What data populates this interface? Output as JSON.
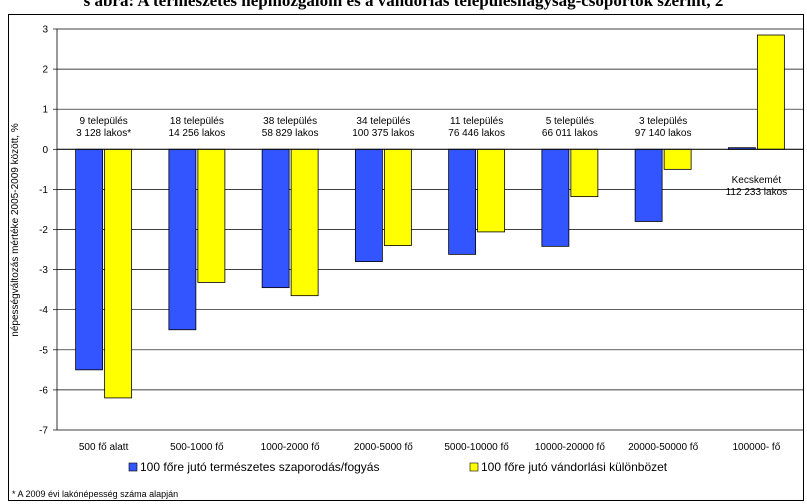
{
  "title": "s ábra: A természetes népmozgalom és a vándorlás településnagyság-csoportok szerint, 2",
  "footnote": "* A 2009 évi lakónépesség száma alapján",
  "chart_data": {
    "type": "bar",
    "ylabel": "népességváltozás mértéke 2005-2009 között, %",
    "xlabel": "",
    "ylim": [
      -7,
      3
    ],
    "yticks": [
      3,
      2,
      1,
      0,
      -1,
      -2,
      -3,
      -4,
      -5,
      -6,
      -7
    ],
    "grid": true,
    "legend_position": "bottom",
    "categories": [
      "500 fő alatt",
      "500-1000 fő",
      "1000-2000 fő",
      "2000-5000 fő",
      "5000-10000 fő",
      "10000-20000 fő",
      "20000-50000 fő",
      "100000- fő"
    ],
    "series": [
      {
        "name": "100 főre jutó természetes szaporodás/fogyás",
        "color": "#3355ff",
        "values": [
          -5.5,
          -4.5,
          -3.45,
          -2.8,
          -2.62,
          -2.42,
          -1.8,
          0.04
        ]
      },
      {
        "name": "100 főre jutó vándorlási különbözet",
        "color": "#ffff00",
        "values": [
          -6.2,
          -3.32,
          -3.65,
          -2.4,
          -2.06,
          -1.18,
          -0.5,
          2.85
        ]
      }
    ],
    "annotations": [
      {
        "category": "500 fő alatt",
        "lines": [
          "9 település",
          "3 128 lakos*"
        ]
      },
      {
        "category": "500-1000 fő",
        "lines": [
          "18 település",
          "14 256 lakos"
        ]
      },
      {
        "category": "1000-2000 fő",
        "lines": [
          "38 település",
          "58 829 lakos"
        ]
      },
      {
        "category": "2000-5000 fő",
        "lines": [
          "34 település",
          "100 375 lakos"
        ]
      },
      {
        "category": "5000-10000 fő",
        "lines": [
          "11 település",
          "76 446 lakos"
        ]
      },
      {
        "category": "10000-20000 fő",
        "lines": [
          "5 település",
          "66 011 lakos"
        ]
      },
      {
        "category": "20000-50000 fő",
        "lines": [
          "3 település",
          "97 140 lakos"
        ]
      },
      {
        "category": "100000- fő",
        "lines": [
          "Kecskemét",
          "112 233 lakos"
        ]
      }
    ]
  }
}
